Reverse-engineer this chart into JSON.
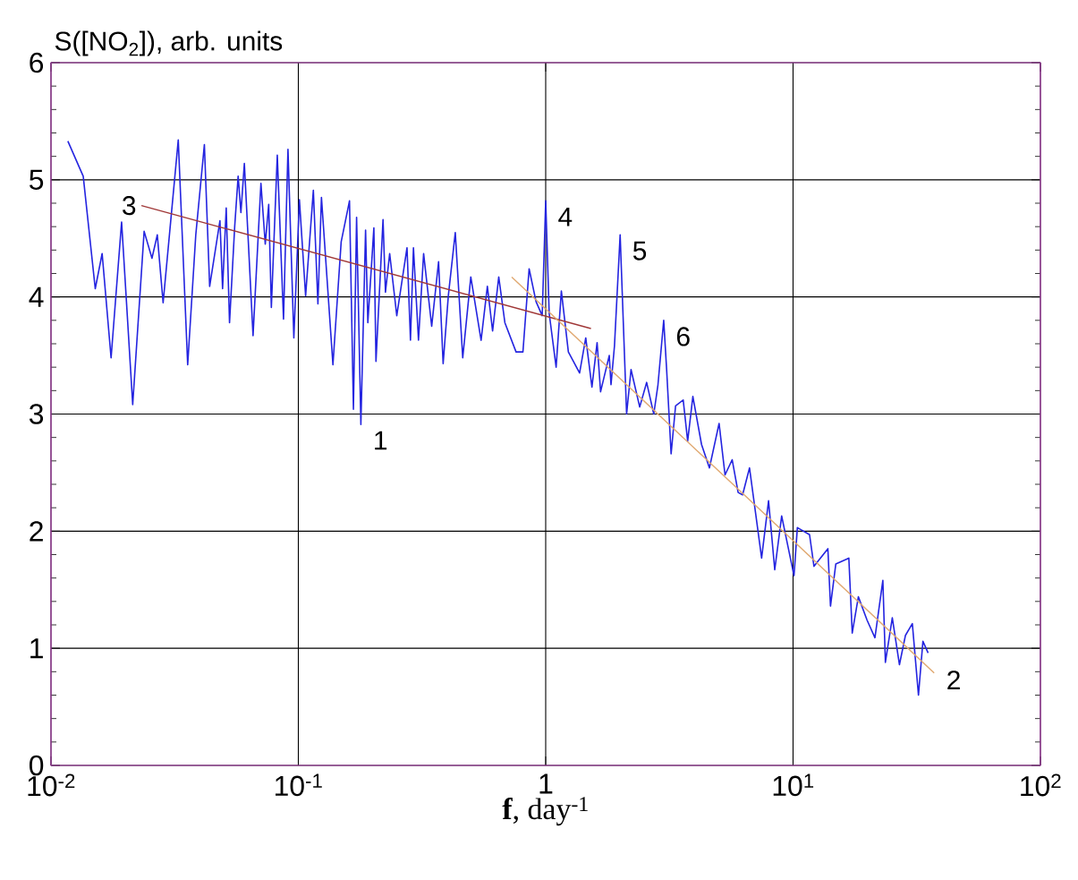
{
  "chart_data": {
    "type": "line",
    "xlabel": "**f**, day$^{-1}$",
    "ylabel": "S([NO$_{2}$]), arb. units",
    "log": "x",
    "grid": true,
    "marker": "none",
    "xlim": [
      0.01,
      100
    ],
    "ylim": [
      0,
      6
    ],
    "xticks": [
      {
        "value": 0.01,
        "label": "10$^{-2}$"
      },
      {
        "value": 0.1,
        "label": "10$^{-1}$"
      },
      1,
      {
        "value": 10,
        "label": "10$^{1}$"
      },
      {
        "value": 100,
        "label": "10$^{2}$"
      }
    ],
    "yticks": [
      0,
      1,
      2,
      3,
      4,
      5,
      6
    ],
    "annotations": [
      {
        "text": "1",
        "x": 0.179,
        "y": 2.91
      },
      {
        "text": "2",
        "x": 37.2,
        "y": 0.79
      },
      {
        "text": "3",
        "x": 0.0232,
        "y": 4.78
      },
      {
        "text": "4",
        "x": 1.0,
        "y": 4.82
      },
      {
        "text": "5",
        "x": 2.0,
        "y": 4.53
      },
      {
        "text": "6",
        "x": 3.0,
        "y": 3.8
      }
    ],
    "series": [
      {
        "color": "#2424e0",
        "x": [
          0.0117,
          0.0135,
          0.0151,
          0.0161,
          0.0175,
          0.0193,
          0.0214,
          0.0238,
          0.0256,
          0.0269,
          0.0284,
          0.0327,
          0.0357,
          0.0385,
          0.0417,
          0.0438,
          0.0482,
          0.0494,
          0.0511,
          0.0527,
          0.0553,
          0.0571,
          0.0586,
          0.0605,
          0.0656,
          0.0706,
          0.0735,
          0.0759,
          0.0778,
          0.0822,
          0.0871,
          0.0908,
          0.0959,
          0.101,
          0.107,
          0.115,
          0.12,
          0.124,
          0.138,
          0.149,
          0.161,
          0.167,
          0.172,
          0.179,
          0.187,
          0.191,
          0.202,
          0.206,
          0.22,
          0.225,
          0.234,
          0.25,
          0.275,
          0.284,
          0.292,
          0.306,
          0.321,
          0.346,
          0.369,
          0.385,
          0.404,
          0.431,
          0.462,
          0.498,
          0.548,
          0.581,
          0.61,
          0.646,
          0.684,
          0.759,
          0.809,
          0.857,
          0.914,
          0.968,
          1.0,
          1.033,
          1.102,
          1.157,
          1.235,
          1.371,
          1.452,
          1.538,
          1.614,
          1.667,
          1.807,
          1.837,
          1.897,
          2.0,
          2.124,
          2.213,
          2.399,
          2.559,
          2.735,
          2.844,
          3.0,
          3.083,
          3.214,
          3.35,
          3.597,
          3.75,
          3.936,
          4.266,
          4.592,
          5.023,
          5.309,
          5.675,
          5.998,
          6.252,
          6.668,
          7.464,
          7.962,
          8.433,
          8.995,
          10.09,
          10.41,
          11.66,
          12.15,
          13.83,
          14.17,
          14.89,
          16.81,
          17.35,
          18.37,
          19.92,
          21.43,
          23.07,
          23.62,
          25.19,
          26.92,
          28.47,
          30.36,
          32.14,
          33.5,
          35.16
        ],
        "values": [
          5.33,
          5.03,
          4.07,
          4.37,
          3.48,
          4.64,
          3.08,
          4.56,
          4.33,
          4.53,
          3.95,
          5.34,
          3.42,
          4.53,
          5.3,
          4.09,
          4.65,
          4.07,
          4.76,
          3.78,
          4.6,
          5.03,
          4.72,
          5.14,
          3.67,
          4.97,
          4.45,
          4.79,
          3.91,
          5.21,
          3.81,
          5.26,
          3.65,
          4.83,
          4.01,
          4.91,
          3.94,
          4.85,
          3.42,
          4.47,
          4.82,
          3.04,
          4.68,
          2.91,
          4.57,
          3.78,
          4.59,
          3.45,
          4.66,
          4.04,
          4.37,
          3.84,
          4.42,
          3.63,
          4.42,
          3.63,
          4.37,
          3.75,
          4.3,
          3.43,
          4.01,
          4.55,
          3.48,
          4.17,
          3.63,
          4.09,
          3.71,
          4.17,
          3.78,
          3.53,
          3.53,
          4.24,
          3.96,
          3.84,
          4.82,
          3.86,
          3.4,
          4.05,
          3.53,
          3.35,
          3.65,
          3.23,
          3.61,
          3.19,
          3.5,
          3.25,
          3.58,
          4.53,
          3.0,
          3.38,
          3.06,
          3.27,
          3.0,
          3.25,
          3.8,
          3.38,
          2.66,
          3.07,
          3.12,
          2.77,
          3.15,
          2.74,
          2.54,
          2.92,
          2.48,
          2.61,
          2.33,
          2.31,
          2.54,
          1.77,
          2.26,
          1.67,
          2.13,
          1.62,
          2.03,
          1.97,
          1.7,
          1.85,
          1.36,
          1.72,
          1.77,
          1.13,
          1.44,
          1.24,
          1.09,
          1.58,
          0.88,
          1.26,
          0.86,
          1.11,
          1.21,
          0.6,
          1.06,
          0.96
        ]
      },
      {
        "type": "line",
        "color": "#a03838",
        "x": [
          0.0232,
          1.524
        ],
        "values": [
          4.78,
          3.73
        ]
      },
      {
        "type": "line",
        "color": "#e0a870",
        "x": [
          0.729,
          37.2
        ],
        "values": [
          4.17,
          0.79
        ]
      }
    ]
  }
}
